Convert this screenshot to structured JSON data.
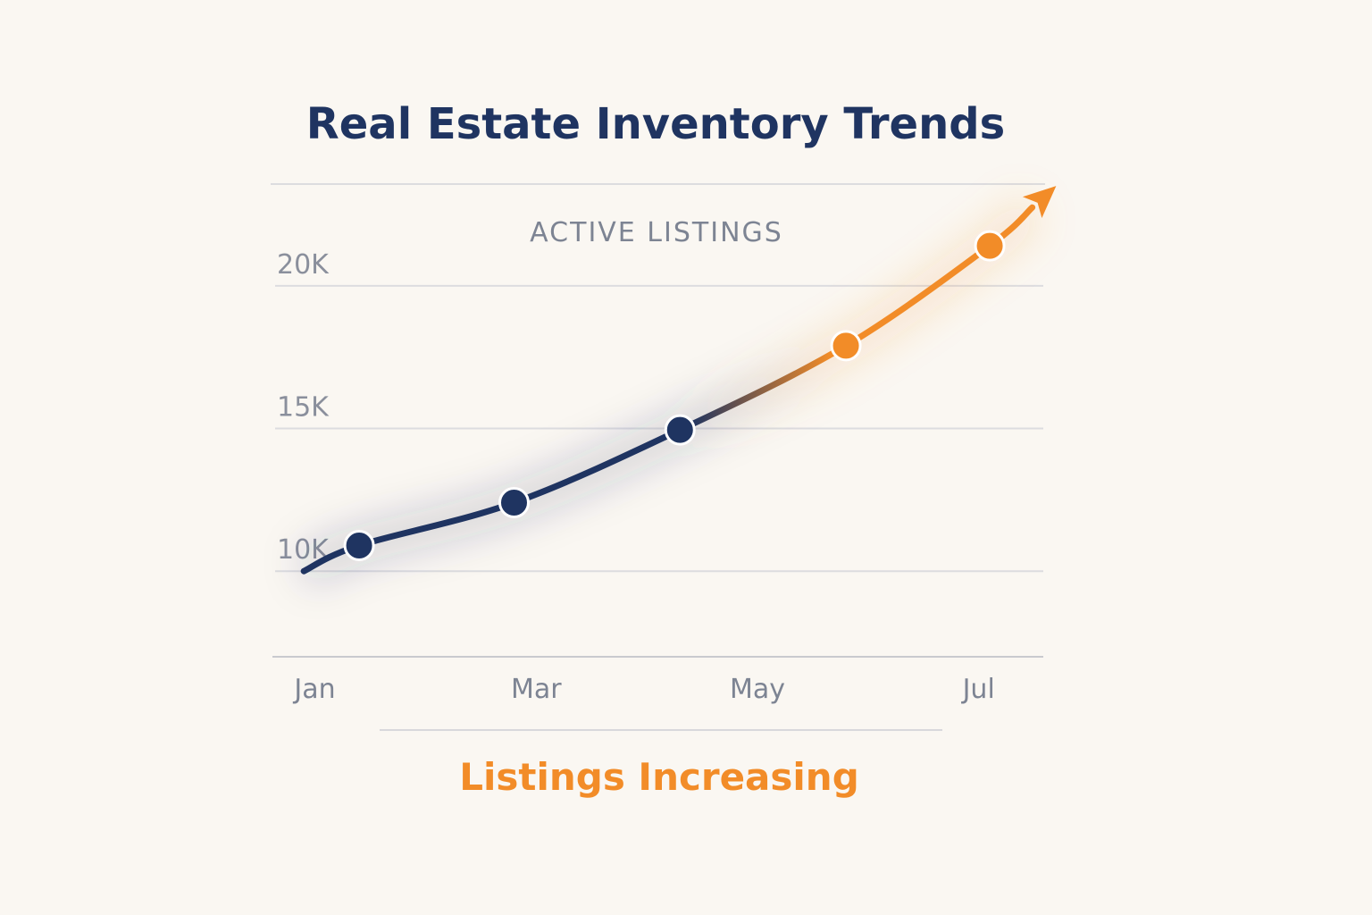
{
  "chart_data": {
    "type": "line",
    "title": "Real Estate Inventory Trends",
    "ylabel": "ACTIVE LISTINGS",
    "xlabel": "",
    "y_ticks": [
      "20K",
      "15K",
      "10K"
    ],
    "y_tick_values": [
      20000,
      15000,
      10000
    ],
    "ylim": [
      7000,
      22500
    ],
    "x_tick_labels": [
      "Jan",
      "Mar",
      "May",
      "Jul"
    ],
    "x_tick_positions": [
      1,
      3,
      5,
      7
    ],
    "xlim": [
      0.6,
      7.6
    ],
    "series": [
      {
        "line_start": {
          "x": 0.9,
          "y": 10000
        },
        "points": [
          {
            "x": 1.4,
            "y": 10900
          },
          {
            "x": 2.8,
            "y": 12400
          },
          {
            "x": 4.3,
            "y": 14950
          },
          {
            "x": 5.8,
            "y": 17900
          },
          {
            "x": 7.1,
            "y": 21400
          }
        ],
        "arrow_end": {
          "x": 7.7,
          "y": 23500
        }
      }
    ],
    "annotation": "Listings Increasing",
    "grid": true,
    "colors": {
      "line_start": "#1f3461",
      "line_end": "#f28c28",
      "grid": "#dcdcdf",
      "background": "#faf7f2"
    }
  }
}
